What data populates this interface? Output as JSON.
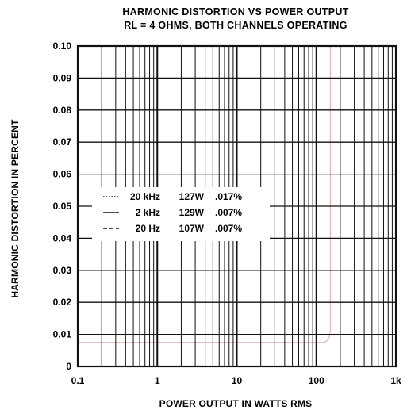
{
  "chart_data": {
    "type": "line",
    "title": "HARMONIC DISTORTION VS POWER OUTPUT",
    "subtitle": "RL = 4 OHMS, BOTH CHANNELS OPERATING",
    "xlabel": "POWER OUTPUT IN WATTS RMS",
    "ylabel": "HARMONIC DISTORTION IN PERCENT",
    "x_scale": "log",
    "xlim": [
      0.1,
      1000
    ],
    "ylim": [
      0,
      0.1
    ],
    "grid": true,
    "legend_position": "center-left",
    "x_ticks": [
      {
        "value": 0.1,
        "label": "0.1"
      },
      {
        "value": 1,
        "label": "1"
      },
      {
        "value": 10,
        "label": "10"
      },
      {
        "value": 100,
        "label": "100"
      },
      {
        "value": 1000,
        "label": "1k"
      }
    ],
    "y_ticks": [
      {
        "value": 0,
        "label": "0"
      },
      {
        "value": 0.01,
        "label": "0.01"
      },
      {
        "value": 0.02,
        "label": "0.02"
      },
      {
        "value": 0.03,
        "label": "0.03"
      },
      {
        "value": 0.04,
        "label": "0.04"
      },
      {
        "value": 0.05,
        "label": "0.05"
      },
      {
        "value": 0.06,
        "label": "0.06"
      },
      {
        "value": 0.07,
        "label": "0.07"
      },
      {
        "value": 0.08,
        "label": "0.08"
      },
      {
        "value": 0.09,
        "label": "0.09"
      },
      {
        "value": 0.1,
        "label": "0.10"
      }
    ],
    "legend": [
      {
        "style": "dotted",
        "freq": "20 kHz",
        "power": "127W",
        "thd": ".017%"
      },
      {
        "style": "solid",
        "freq": "2 kHz",
        "power": "129W",
        "thd": ".007%"
      },
      {
        "style": "dashed",
        "freq": "20 Hz",
        "power": "107W",
        "thd": ".007%"
      }
    ],
    "series": [],
    "colors": {
      "ink": "#111111",
      "faint_trace": "#e7b4b4"
    }
  }
}
